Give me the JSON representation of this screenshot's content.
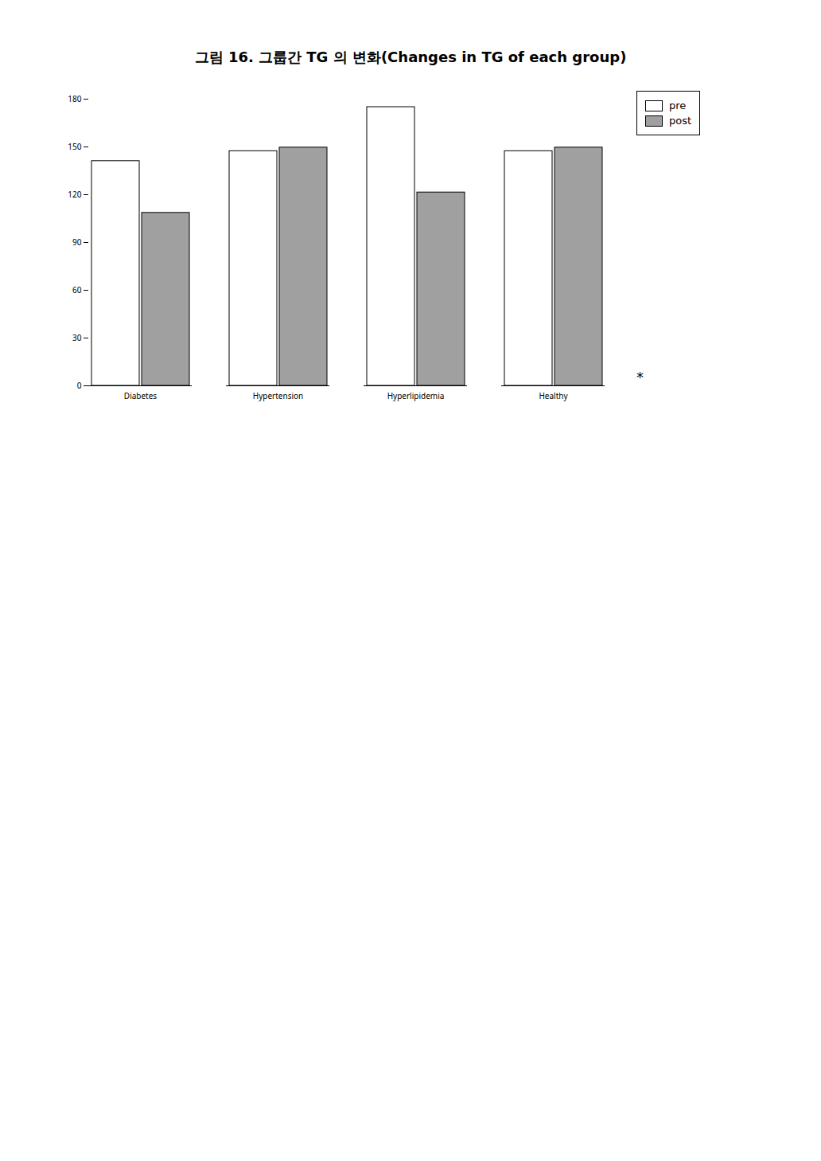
{
  "chart_data": {
    "type": "bar",
    "title": "그림 16. 그룹간 TG 의 변화(Changes in TG of each group)",
    "categories": [
      "Diabetes",
      "Hypertension",
      "Hyperlipidemia",
      "Healthy"
    ],
    "series": [
      {
        "name": "pre",
        "color": "#ffffff",
        "values": [
          141.1,
          147.33,
          175.0,
          147.33
        ]
      },
      {
        "name": "post",
        "color": "#a0a0a0",
        "values": [
          108.6,
          149.58,
          121.4,
          149.58
        ]
      }
    ],
    "ylim": [
      0,
      180
    ],
    "yticks": [
      0,
      30,
      60,
      90,
      120,
      150,
      180
    ],
    "grid": false,
    "legend": "top-right",
    "annotations": [
      "*"
    ]
  }
}
